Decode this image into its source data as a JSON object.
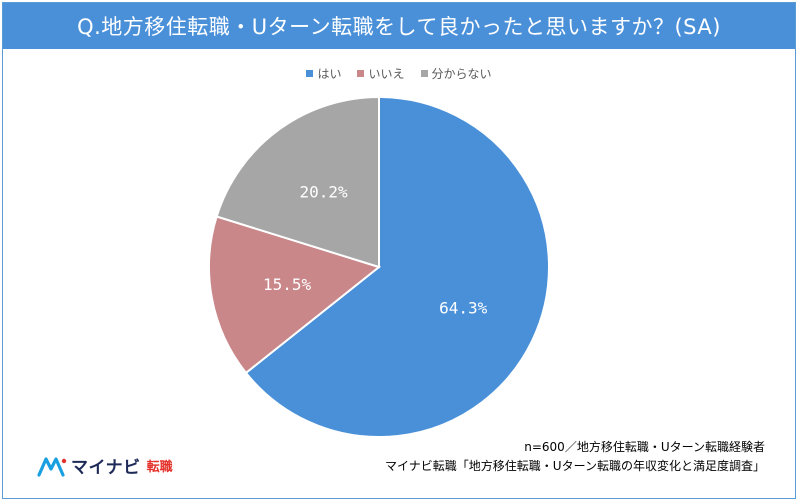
{
  "header": {
    "title": "Q.地方移住転職・Uターン転職をして良かったと思いますか？(SA)"
  },
  "chart_data": {
    "type": "pie",
    "title": "Q.地方移住転職・Uターン転職をして良かったと思いますか？(SA)",
    "legend_position": "top",
    "categories": [
      "はい",
      "いいえ",
      "分からない"
    ],
    "values": [
      64.3,
      15.5,
      20.2
    ],
    "labels": [
      "64.3%",
      "15.5%",
      "20.2%"
    ],
    "colors": [
      "#4a90d9",
      "#c9878a",
      "#a6a6a6"
    ]
  },
  "footer": {
    "line1": "n=600／地方移住転職・Uターン転職経験者",
    "line2": "マイナビ転職「地方移住転職・Uターン転職の年収変化と満足度調査」"
  },
  "logo": {
    "name": "マイナビ",
    "sub": "転職",
    "icon": "mynavi-logo-icon",
    "colors": {
      "primary": "#1d2a57",
      "accent": "#e4322b",
      "mark": "#1a9fe0"
    }
  }
}
